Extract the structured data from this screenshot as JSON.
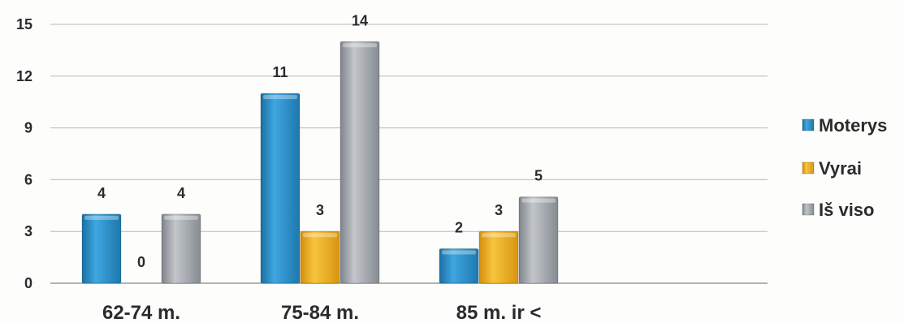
{
  "chart_data": {
    "type": "bar",
    "categories": [
      "62-74 m.",
      "75-84 m.",
      "85 m. ir <"
    ],
    "series": [
      {
        "name": "Moterys",
        "values": [
          4,
          11,
          2
        ],
        "color": "#2e93cf"
      },
      {
        "name": "Vyrai",
        "values": [
          0,
          3,
          3
        ],
        "color": "#f2b01c"
      },
      {
        "name": "Iš viso",
        "values": [
          4,
          14,
          5
        ],
        "color": "#a6aab0"
      }
    ],
    "data_labels": [
      [
        "4",
        "0",
        "4"
      ],
      [
        "11",
        "3",
        "14"
      ],
      [
        "2",
        "3",
        "5"
      ]
    ],
    "y_ticks": [
      0,
      3,
      6,
      9,
      12,
      15
    ],
    "ylim": [
      0,
      15
    ],
    "grid": true,
    "legend": "right",
    "title": "",
    "xlabel": "",
    "ylabel": ""
  }
}
